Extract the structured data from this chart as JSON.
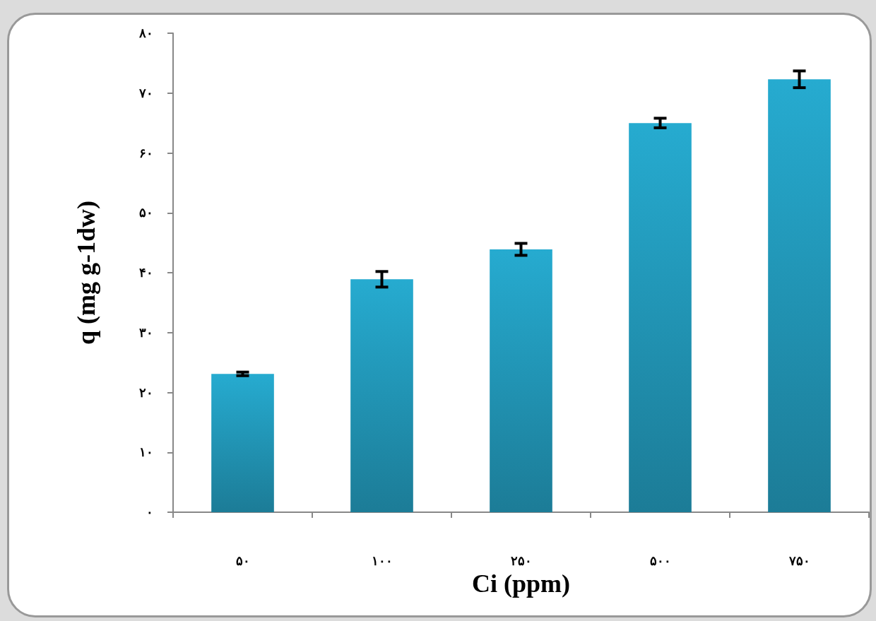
{
  "chart_data": {
    "type": "bar",
    "xlabel": "Ci (ppm)",
    "ylabel": "q (mg g-1dw)",
    "categories": [
      "۵۰",
      "۱۰۰",
      "۲۵۰",
      "۵۰۰",
      "۷۵۰"
    ],
    "values": [
      23.1,
      38.9,
      43.9,
      65.0,
      72.3
    ],
    "errors": [
      0.3,
      1.3,
      1.0,
      0.8,
      1.4
    ],
    "color": "#26abd0",
    "ylim": [
      0,
      80
    ],
    "yticks": [
      {
        "value": 0,
        "label": "۰"
      },
      {
        "value": 10,
        "label": "۱۰"
      },
      {
        "value": 20,
        "label": "۲۰"
      },
      {
        "value": 30,
        "label": "۳۰"
      },
      {
        "value": 40,
        "label": "۴۰"
      },
      {
        "value": 50,
        "label": "۵۰"
      },
      {
        "value": 60,
        "label": "۶۰"
      },
      {
        "value": 70,
        "label": "۷۰"
      },
      {
        "value": 80,
        "label": "۸۰"
      }
    ],
    "grid": false
  }
}
